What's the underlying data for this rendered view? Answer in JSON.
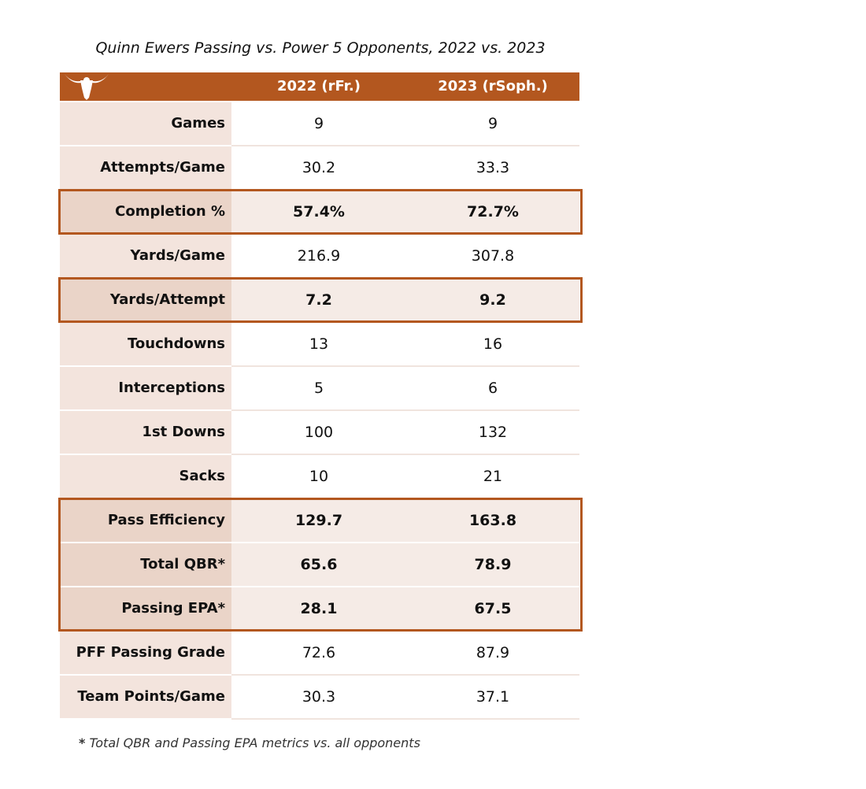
{
  "chart_data": {
    "type": "table",
    "title": "Quinn Ewers Passing vs. Power 5 Opponents, 2022 vs. 2023",
    "columns": [
      "2022 (rFr.)",
      "2023 (rSoph.)"
    ],
    "rows": [
      {
        "label": "Games",
        "values": [
          "9",
          "9"
        ],
        "highlight": false
      },
      {
        "label": "Attempts/Game",
        "values": [
          "30.2",
          "33.3"
        ],
        "highlight": false
      },
      {
        "label": "Completion %",
        "values": [
          "57.4%",
          "72.7%"
        ],
        "highlight": true
      },
      {
        "label": "Yards/Game",
        "values": [
          "216.9",
          "307.8"
        ],
        "highlight": false
      },
      {
        "label": "Yards/Attempt",
        "values": [
          "7.2",
          "9.2"
        ],
        "highlight": true
      },
      {
        "label": "Touchdowns",
        "values": [
          "13",
          "16"
        ],
        "highlight": false
      },
      {
        "label": "Interceptions",
        "values": [
          "5",
          "6"
        ],
        "highlight": false
      },
      {
        "label": "1st Downs",
        "values": [
          "100",
          "132"
        ],
        "highlight": false
      },
      {
        "label": "Sacks",
        "values": [
          "10",
          "21"
        ],
        "highlight": false
      },
      {
        "label": "Pass Efficiency",
        "values": [
          "129.7",
          "163.8"
        ],
        "highlight": true
      },
      {
        "label": "Total QBR*",
        "values": [
          "65.6",
          "78.9"
        ],
        "highlight": true
      },
      {
        "label": "Passing EPA*",
        "values": [
          "28.1",
          "67.5"
        ],
        "highlight": true
      },
      {
        "label": "PFF Passing Grade",
        "values": [
          "72.6",
          "87.9"
        ],
        "highlight": false
      },
      {
        "label": "Team Points/Game",
        "values": [
          "30.3",
          "37.1"
        ],
        "highlight": false
      }
    ],
    "footnote_mark": "*",
    "footnote": "Total QBR and Passing EPA metrics vs. all opponents"
  },
  "colors": {
    "accent": "#b3571f",
    "label_bg": "#f3e4dd",
    "highlight_label_bg": "#ead4c8",
    "highlight_cell_bg": "#f5ebe6"
  },
  "icons": {
    "logo": "longhorn-logo-icon"
  }
}
